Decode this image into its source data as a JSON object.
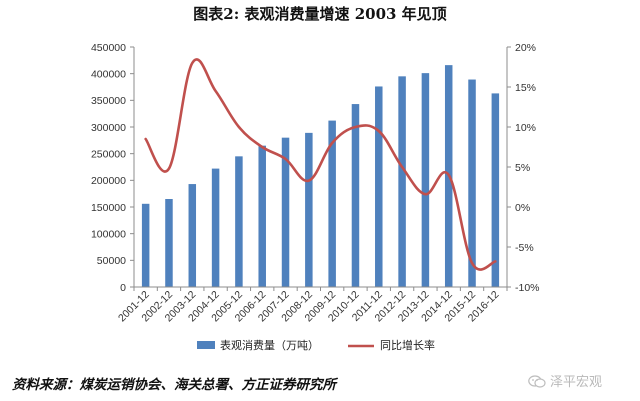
{
  "title": "图表2:   表观消费量增速 2003 年见顶",
  "source": "资料来源：煤炭运销协会、海关总署、方正证券研究所",
  "watermark": {
    "text": "泽平宏观",
    "icon": "wechat-icon"
  },
  "chart_data": {
    "type": "bar+line",
    "categories": [
      "2001-12",
      "2002-12",
      "2003-12",
      "2004-12",
      "2005-12",
      "2006-12",
      "2007-12",
      "2008-12",
      "2009-12",
      "2010-12",
      "2011-12",
      "2012-12",
      "2013-12",
      "2014-12",
      "2015-12",
      "2016-12"
    ],
    "series": [
      {
        "name": "表观消费量（万吨）",
        "type": "bar",
        "axis": "left",
        "color": "#4f81bd",
        "values": [
          156000,
          165000,
          193000,
          222000,
          245000,
          265000,
          280000,
          289000,
          312000,
          343000,
          376000,
          395000,
          401000,
          416000,
          389000,
          363000
        ]
      },
      {
        "name": "同比增长率",
        "type": "line",
        "axis": "right",
        "color": "#c0504d",
        "values": [
          8.5,
          4.8,
          18.0,
          14.5,
          10.0,
          7.5,
          6.0,
          3.3,
          8.0,
          10.0,
          9.5,
          5.0,
          1.6,
          4.0,
          -7.0,
          -6.8
        ]
      }
    ],
    "y_left": {
      "min": 0,
      "max": 450000,
      "ticks": [
        0,
        50000,
        100000,
        150000,
        200000,
        250000,
        300000,
        350000,
        400000,
        450000
      ],
      "tick_labels": [
        "0",
        "50000",
        "100000",
        "150000",
        "200000",
        "250000",
        "300000",
        "350000",
        "400000",
        "450000"
      ]
    },
    "y_right": {
      "min": -10,
      "max": 20,
      "ticks": [
        -10,
        -5,
        0,
        5,
        10,
        15,
        20
      ],
      "tick_labels": [
        "-10%",
        "-5%",
        "0%",
        "5%",
        "10%",
        "15%",
        "20%"
      ]
    },
    "grid": false,
    "legend": {
      "position": "bottom",
      "items": [
        {
          "label": "表观消费量（万吨）",
          "kind": "bar",
          "color": "#4f81bd"
        },
        {
          "label": "同比增长率",
          "kind": "line",
          "color": "#c0504d"
        }
      ]
    }
  }
}
